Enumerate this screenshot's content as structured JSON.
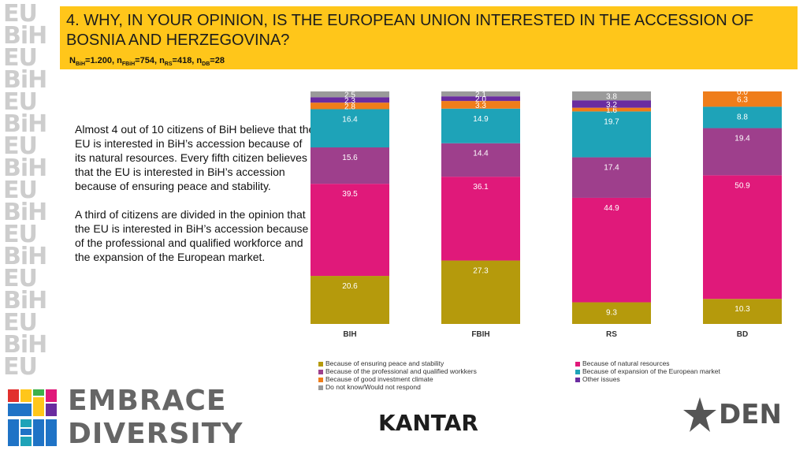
{
  "header": {
    "title": "4. WHY, IN YOUR OPINION, IS THE EUROPEAN UNION INTERESTED IN THE ACCESSION OF BOSNIA AND HERZEGOVINA?",
    "sample": {
      "n_label": "N",
      "bih_sub": "BiH",
      "bih_val": "=1.200, ",
      "fbih_sub": "FBiH",
      "fbih_val": "=754, ",
      "rs_sub": "RS",
      "rs_val": "=418, ",
      "db_sub": "DB",
      "db_val": "=28",
      "n_letter": "n"
    }
  },
  "summary": {
    "p1": "Almost 4 out of 10 citizens of BiH believe that the EU is interested in BiH’s accession because of its natural resources. Every fifth citizen believes that the EU is interested in BiH’s accession because of ensuring peace and stability.",
    "p2": "A third of citizens are divided in the opinion that the EU is interested in BiH’s accession because of the professional and qualified workforce and the expansion of the European market."
  },
  "chart_data": {
    "type": "bar",
    "stacked": true,
    "normalized_percent": true,
    "categories": [
      "BIH",
      "FBIH",
      "RS",
      "BD"
    ],
    "series": [
      {
        "name": "Because of ensuring peace and stability",
        "color": "#b59a0c",
        "values": [
          20.6,
          27.3,
          9.3,
          10.3
        ]
      },
      {
        "name": "Because of natural resources",
        "color": "#e0197a",
        "values": [
          39.5,
          36.1,
          44.9,
          50.9
        ]
      },
      {
        "name": "Because of the professional and qualified workkers",
        "color": "#9e3f8c",
        "values": [
          15.6,
          14.4,
          17.4,
          19.4
        ]
      },
      {
        "name": "Because of expansion of the European market",
        "color": "#1ea3b8",
        "values": [
          16.4,
          14.9,
          19.7,
          8.8
        ]
      },
      {
        "name": "Because of good investment climate",
        "color": "#ef7d1a",
        "values": [
          2.8,
          3.3,
          1.6,
          6.3
        ]
      },
      {
        "name": "Other issues",
        "color": "#6a2ca0",
        "values": [
          2.3,
          2.0,
          3.2,
          0.0
        ]
      },
      {
        "name": "Do not know/Would not respond",
        "color": "#9a9a9a",
        "values": [
          2.5,
          2.1,
          3.8,
          0.0
        ]
      }
    ],
    "legend_order": [
      0,
      1,
      2,
      3,
      4,
      5,
      6
    ],
    "label_color": "#ffffff"
  },
  "branding": {
    "strip_text": "EU\nBiH\nEU\nBiH\nEU\nBiH\nEU\nBiH\nEU\nBiH\nEU\nBiH\nEU\nBiH\nEU\nBiH\nEU",
    "embrace": "EMBRACE",
    "diversity": "DIVERSITY",
    "bie_top": "Bi",
    "bie_bottom": "EU",
    "kantar": "KANTAR",
    "den": "DEN"
  }
}
